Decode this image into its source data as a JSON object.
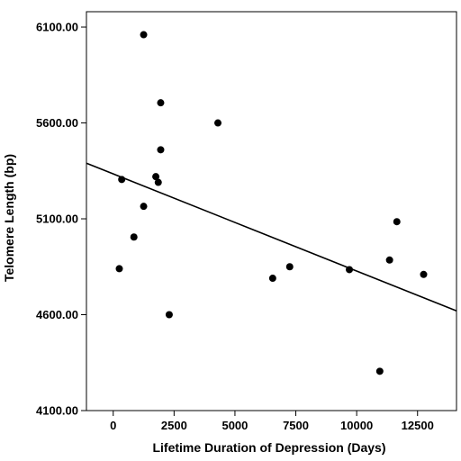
{
  "chart_data": {
    "type": "scatter",
    "title": "",
    "xlabel": "Lifetime Duration of Depression (Days)",
    "ylabel": "Telomere Length (bp)",
    "xlim": [
      -1100,
      14100
    ],
    "ylim": [
      4100,
      6180
    ],
    "x_ticks": [
      0,
      2500,
      5000,
      7500,
      10000,
      12500
    ],
    "x_tick_labels": [
      "0",
      "2500",
      "5000",
      "7500",
      "10000",
      "12500"
    ],
    "y_ticks": [
      4100,
      4600,
      5100,
      5600,
      6100
    ],
    "y_tick_labels": [
      "4100.00",
      "4600.00",
      "5100.00",
      "5600.00",
      "6100.00"
    ],
    "grid": false,
    "legend": "none",
    "points": [
      {
        "x": 1250,
        "y": 6060
      },
      {
        "x": 1950,
        "y": 5705
      },
      {
        "x": 4300,
        "y": 5600
      },
      {
        "x": 1950,
        "y": 5460
      },
      {
        "x": 1750,
        "y": 5320
      },
      {
        "x": 350,
        "y": 5305
      },
      {
        "x": 1850,
        "y": 5290
      },
      {
        "x": 1250,
        "y": 5165
      },
      {
        "x": 850,
        "y": 5005
      },
      {
        "x": 250,
        "y": 4840
      },
      {
        "x": 2300,
        "y": 4600
      },
      {
        "x": 6550,
        "y": 4790
      },
      {
        "x": 7250,
        "y": 4850
      },
      {
        "x": 9700,
        "y": 4835
      },
      {
        "x": 11350,
        "y": 4885
      },
      {
        "x": 11650,
        "y": 5085
      },
      {
        "x": 12750,
        "y": 4810
      },
      {
        "x": 10950,
        "y": 4305
      }
    ],
    "fit_line": {
      "x": [
        -1100,
        14100
      ],
      "y": [
        5390,
        4620
      ]
    },
    "colors": {
      "points": "#000000",
      "line": "#000000",
      "axes": "#000000"
    }
  }
}
